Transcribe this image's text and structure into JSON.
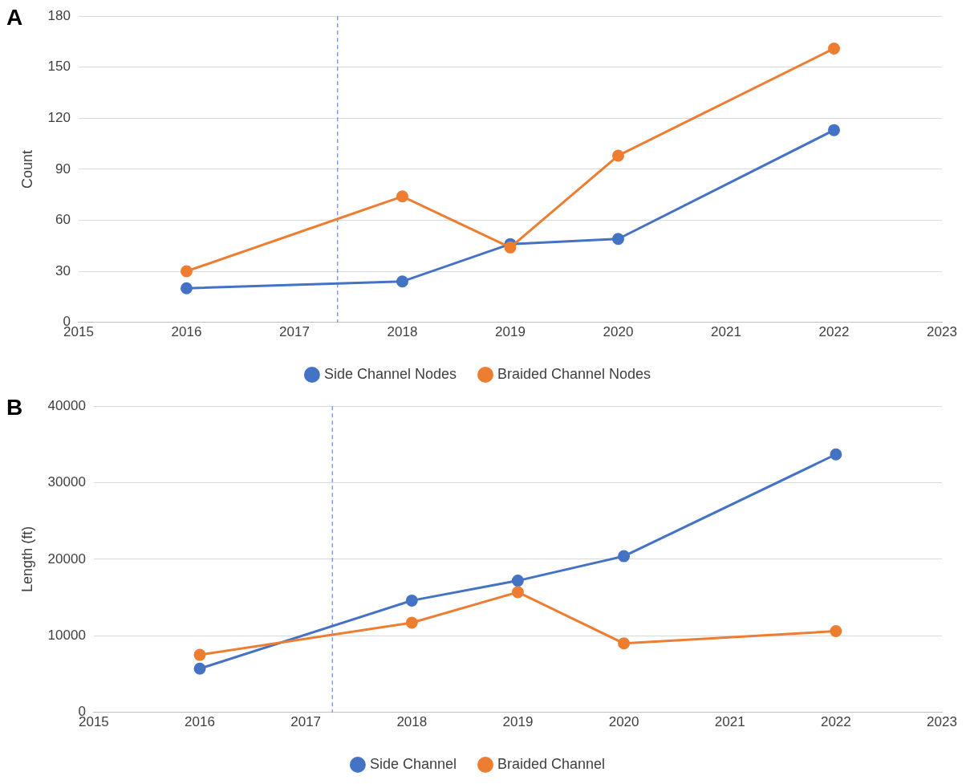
{
  "chart_data": [
    {
      "type": "line",
      "annotations": [
        "A"
      ],
      "ylabel": "Count",
      "x": [
        2016,
        2018,
        2019,
        2020,
        2022
      ],
      "xlim": [
        2015,
        2023
      ],
      "xticks": [
        2015,
        2016,
        2017,
        2018,
        2019,
        2020,
        2021,
        2022,
        2023
      ],
      "ylim": [
        0,
        180
      ],
      "yticks": [
        0,
        30,
        60,
        90,
        120,
        150,
        180
      ],
      "grid": "y",
      "legend": "bottom",
      "marker": "circle",
      "line_style": "solid",
      "series": [
        {
          "name": "Side Channel Nodes",
          "color": "#4472c4",
          "values": [
            20,
            24,
            46,
            49,
            113
          ]
        },
        {
          "name": "Braided Channel Nodes",
          "color": "#ed7d31",
          "values": [
            30,
            74,
            44,
            98,
            161
          ]
        }
      ],
      "ref_lines": [
        {
          "axis": "x",
          "value": 2017.4,
          "color": "#4472c4",
          "line_style": "dashed"
        }
      ]
    },
    {
      "type": "line",
      "annotations": [
        "B"
      ],
      "ylabel": "Length (ft)",
      "x": [
        2016,
        2018,
        2019,
        2020,
        2022
      ],
      "xlim": [
        2015,
        2023
      ],
      "xticks": [
        2015,
        2016,
        2017,
        2018,
        2019,
        2020,
        2021,
        2022,
        2023
      ],
      "ylim": [
        0,
        40000
      ],
      "yticks": [
        0,
        10000,
        20000,
        30000,
        40000
      ],
      "grid": "y",
      "legend": "bottom",
      "marker": "circle",
      "line_style": "solid",
      "series": [
        {
          "name": "Side Channel",
          "color": "#4472c4",
          "values": [
            5700,
            14600,
            17200,
            20400,
            33700
          ]
        },
        {
          "name": "Braided Channel",
          "color": "#ed7d31",
          "values": [
            7500,
            11700,
            15700,
            9000,
            10600
          ]
        }
      ],
      "ref_lines": [
        {
          "axis": "x",
          "value": 2017.25,
          "color": "#4472c4",
          "line_style": "dashed"
        }
      ]
    }
  ]
}
